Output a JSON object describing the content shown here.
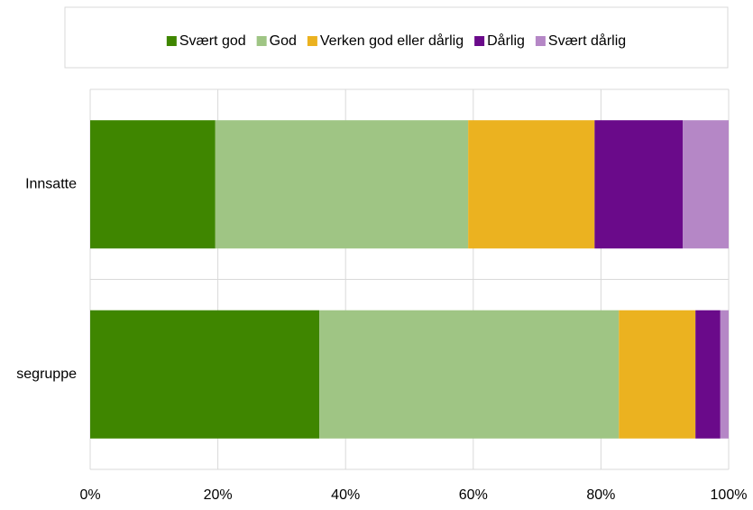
{
  "chart_data": {
    "type": "stacked_barh",
    "categories": [
      "Innsatte",
      "segruppe"
    ],
    "series": [
      {
        "name": "Svært god",
        "color": "#3f8600",
        "values": [
          19.6,
          35.9
        ]
      },
      {
        "name": "God",
        "color": "#9fc584",
        "values": [
          39.6,
          46.9
        ]
      },
      {
        "name": "Verken god eller dårlig",
        "color": "#ebb220",
        "values": [
          19.8,
          12.0
        ]
      },
      {
        "name": "Dårlig",
        "color": "#6a0a8a",
        "values": [
          13.8,
          3.9
        ]
      },
      {
        "name": "Svært dårlig",
        "color": "#b587c6",
        "values": [
          7.2,
          1.3
        ]
      }
    ],
    "xlim": [
      0,
      100
    ],
    "xticks": [
      {
        "value": 0,
        "label": "0%"
      },
      {
        "value": 20,
        "label": "20%"
      },
      {
        "value": 40,
        "label": "40%"
      },
      {
        "value": 60,
        "label": "60%"
      },
      {
        "value": 80,
        "label": "80%"
      },
      {
        "value": 100,
        "label": "100%"
      }
    ],
    "grid": true,
    "legend": "top"
  }
}
